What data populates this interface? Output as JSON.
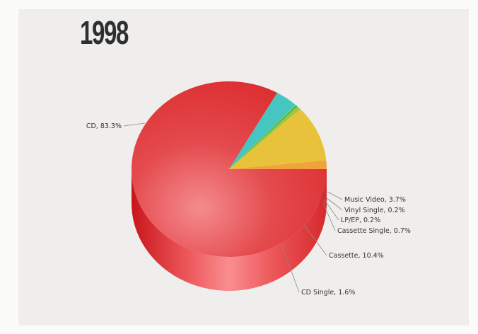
{
  "chart_data": {
    "type": "pie",
    "title": "1998",
    "slices": [
      {
        "label": "CD",
        "value": 83.3,
        "color": "#e4353a",
        "side": "#c72025"
      },
      {
        "label": "Music Video",
        "value": 3.7,
        "color": "#45c6c0",
        "side": "#2fa39e"
      },
      {
        "label": "Vinyl Single",
        "value": 0.2,
        "color": "#7fc85a",
        "side": "#5ea33c"
      },
      {
        "label": "LP/EP",
        "value": 0.2,
        "color": "#26a85a",
        "side": "#1a8646"
      },
      {
        "label": "Cassette Single",
        "value": 0.7,
        "color": "#9ac93e",
        "side": "#78a72a"
      },
      {
        "label": "Cassette",
        "value": 10.4,
        "color": "#e8c23a",
        "side": "#c89c1c"
      },
      {
        "label": "CD Single",
        "value": 1.6,
        "color": "#f1a23b",
        "side": "#d9822a"
      }
    ],
    "data_labels": [
      "CD, 83.3%",
      "Music Video, 3.7%",
      "Vinyl Single, 0.2%",
      "LP/EP, 0.2%",
      "Cassette Single, 0.7%",
      "Cassette, 10.4%",
      "CD Single, 1.6%"
    ]
  }
}
